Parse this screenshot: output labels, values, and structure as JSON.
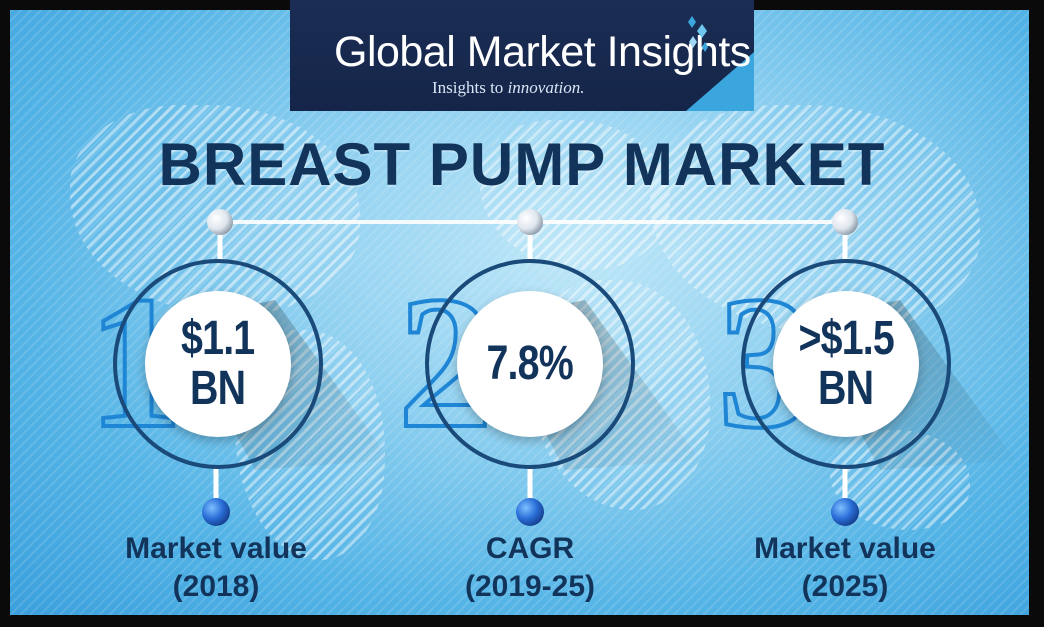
{
  "brand": {
    "name": "Global Market Insights",
    "tagline_prefix": "Insights to ",
    "tagline_emphasis": "innovation."
  },
  "title": "BREAST PUMP MARKET",
  "stats": [
    {
      "index": "1",
      "value_line1": "$1.1",
      "value_line2": "BN",
      "label_line1": "Market value",
      "label_line2": "(2018)"
    },
    {
      "index": "2",
      "value_line1": "7.8%",
      "value_line2": "",
      "label_line1": "CAGR",
      "label_line2": "(2019-25)"
    },
    {
      "index": "3",
      "value_line1": ">$1.5",
      "value_line2": "BN",
      "label_line1": "Market value",
      "label_line2": "(2025)"
    }
  ],
  "colors": {
    "navy": "#12345b",
    "ring": "#1a4a7a",
    "accent": "#1f86d6",
    "dot": "#2a6fd8"
  }
}
